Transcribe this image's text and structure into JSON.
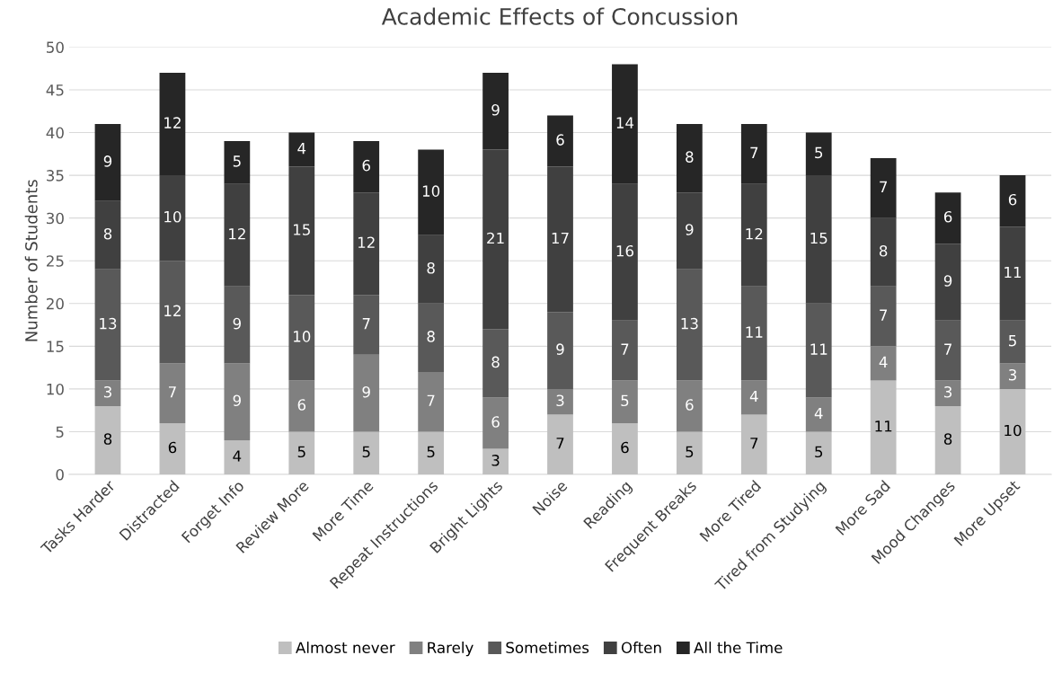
{
  "chart_data": {
    "type": "bar",
    "stacked": true,
    "title": "Academic Effects of Concussion",
    "ylabel": "Number of Students",
    "categories": [
      "Tasks Harder",
      "Distracted",
      "Forget Info",
      "Review More",
      "More Time",
      "Repeat Instructions",
      "Bright Lights",
      "Noise",
      "Reading",
      "Frequent Breaks",
      "More Tired",
      "Tired from Studying",
      "More Sad",
      "Mood Changes",
      "More Upset"
    ],
    "series": [
      {
        "name": "Almost never",
        "color": "#bfbfbf",
        "values": [
          8,
          6,
          4,
          5,
          5,
          5,
          3,
          7,
          6,
          5,
          7,
          5,
          11,
          8,
          10
        ]
      },
      {
        "name": "Rarely",
        "color": "#808080",
        "values": [
          3,
          7,
          9,
          6,
          9,
          7,
          6,
          3,
          5,
          6,
          4,
          4,
          4,
          3,
          3
        ]
      },
      {
        "name": "Sometimes",
        "color": "#595959",
        "values": [
          13,
          12,
          9,
          10,
          7,
          8,
          8,
          9,
          7,
          13,
          11,
          11,
          7,
          7,
          5
        ]
      },
      {
        "name": "Often",
        "color": "#404040",
        "values": [
          8,
          10,
          12,
          15,
          12,
          8,
          21,
          17,
          16,
          9,
          12,
          15,
          8,
          9,
          11
        ]
      },
      {
        "name": "All the Time",
        "color": "#262626",
        "values": [
          9,
          12,
          5,
          4,
          6,
          10,
          9,
          6,
          14,
          8,
          7,
          5,
          7,
          6,
          6
        ]
      }
    ],
    "ylim": [
      0,
      50
    ],
    "yticks": [
      0,
      5,
      10,
      15,
      20,
      25,
      30,
      35,
      40,
      45,
      50
    ],
    "grid": "y",
    "legend": "bottom",
    "data_labels": true
  }
}
